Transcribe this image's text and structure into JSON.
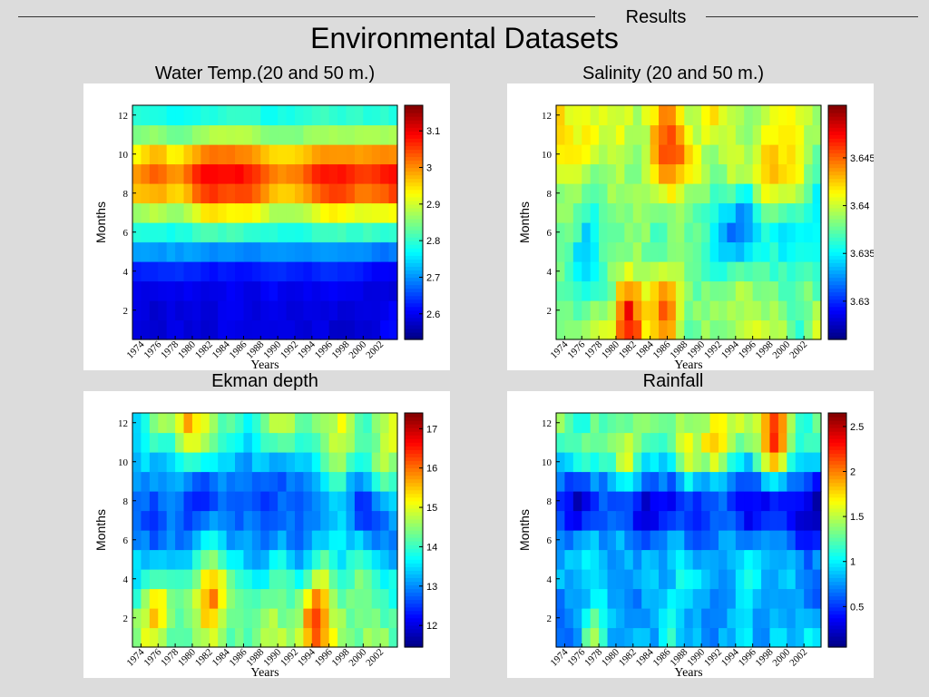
{
  "header": {
    "section_label": "Results",
    "title": "Environmental Datasets"
  },
  "chart_data": [
    {
      "type": "heatmap",
      "title": "Water Temp.(20 and 50 m.)",
      "xlabel": "Years",
      "ylabel": "Months",
      "xlim": [
        1973,
        2004
      ],
      "ylim": [
        1,
        12
      ],
      "xticks": [
        "1974",
        "1976",
        "1978",
        "1980",
        "1982",
        "1984",
        "1986",
        "1988",
        "1990",
        "1992",
        "1994",
        "1996",
        "1998",
        "2000",
        "2002"
      ],
      "yticks": [
        "2",
        "4",
        "6",
        "8",
        "10",
        "12"
      ],
      "colorbar": {
        "min": 2.53,
        "max": 3.17,
        "ticks": [
          "2.6",
          "2.7",
          "2.8",
          "2.9",
          "3",
          "3.1"
        ],
        "tick_values": [
          2.6,
          2.7,
          2.8,
          2.9,
          3.0,
          3.1
        ]
      },
      "colormap": "jet",
      "field": {
        "base": [
          0.1,
          0.1,
          0.11,
          0.13,
          0.24,
          0.45,
          0.56,
          0.8,
          0.87,
          0.72,
          0.52,
          0.34
        ],
        "year_amp": 0.14,
        "year_pattern": [
          0.0,
          0.3,
          -0.2,
          0.4,
          0.9,
          1.0,
          0.8,
          0.3,
          -0.1,
          0.0,
          0.5,
          0.9,
          0.8,
          0.3,
          0.6,
          0.8
        ],
        "year_months": [
          7,
          8,
          9,
          10
        ],
        "noise": 0.06,
        "seed": 11
      }
    },
    {
      "type": "heatmap",
      "title": "Salinity (20 and 50 m.)",
      "xlabel": "Years",
      "ylabel": "Months",
      "xlim": [
        1973,
        2004
      ],
      "ylim": [
        1,
        12
      ],
      "xticks": [
        "1974",
        "1976",
        "1978",
        "1980",
        "1982",
        "1984",
        "1986",
        "1988",
        "1990",
        "1992",
        "1994",
        "1996",
        "1998",
        "2000",
        "2002"
      ],
      "yticks": [
        "2",
        "4",
        "6",
        "8",
        "10",
        "12"
      ],
      "colorbar": {
        "min": 3.626,
        "max": 3.6505,
        "ticks": [
          "3.63",
          "3.635",
          "3.64",
          "3.645"
        ],
        "tick_values": [
          3.63,
          3.635,
          3.64,
          3.645
        ]
      },
      "colormap": "jet",
      "field": {
        "base": [
          0.55,
          0.55,
          0.52,
          0.48,
          0.45,
          0.45,
          0.5,
          0.52,
          0.55,
          0.58,
          0.6,
          0.58
        ],
        "year_amp": 0.0,
        "year_pattern": [],
        "year_months": [],
        "noise": 0.2,
        "seed": 23,
        "hotspots": [
          [
            1981,
            2,
            0.45,
            1.4
          ],
          [
            1985,
            2,
            0.35,
            1.2
          ],
          [
            1986,
            9.5,
            0.35,
            1.6
          ],
          [
            1998,
            9,
            0.3,
            1.3
          ],
          [
            1976,
            4,
            -0.3,
            1.4
          ],
          [
            1994,
            6,
            -0.25,
            1.8
          ],
          [
            2002,
            6,
            -0.3,
            1.5
          ]
        ]
      }
    },
    {
      "type": "heatmap",
      "title": "Ekman depth",
      "xlabel": "Years",
      "ylabel": "Months",
      "xlim": [
        1973,
        2004
      ],
      "ylim": [
        1,
        12
      ],
      "xticks": [
        "1974",
        "1976",
        "1978",
        "1980",
        "1982",
        "1984",
        "1986",
        "1988",
        "1990",
        "1992",
        "1994",
        "1996",
        "1998",
        "2000",
        "2002"
      ],
      "yticks": [
        "2",
        "4",
        "6",
        "8",
        "10",
        "12"
      ],
      "colorbar": {
        "min": 11.45,
        "max": 17.4,
        "ticks": [
          "12",
          "13",
          "14",
          "15",
          "16",
          "17"
        ],
        "tick_values": [
          12,
          13,
          14,
          15,
          16,
          17
        ]
      },
      "colormap": "jet",
      "field": {
        "base": [
          0.52,
          0.5,
          0.47,
          0.42,
          0.36,
          0.28,
          0.22,
          0.2,
          0.24,
          0.32,
          0.42,
          0.5
        ],
        "year_amp": 0.0,
        "year_pattern": [],
        "year_months": [],
        "noise": 0.18,
        "seed": 37,
        "hotspots": [
          [
            1994,
            2,
            0.5,
            1.3
          ],
          [
            1982,
            3,
            0.45,
            1.0
          ],
          [
            1975,
            2.5,
            0.4,
            1.1
          ],
          [
            1996,
            10,
            0.3,
            1.5
          ],
          [
            2002,
            10,
            0.3,
            1.2
          ],
          [
            1979,
            11.5,
            0.35,
            1.2
          ]
        ]
      }
    },
    {
      "type": "heatmap",
      "title": "Rainfall",
      "xlabel": "Years",
      "ylabel": "Months",
      "xlim": [
        1973,
        2004
      ],
      "ylim": [
        1,
        12
      ],
      "xticks": [
        "1974",
        "1976",
        "1978",
        "1980",
        "1982",
        "1984",
        "1986",
        "1988",
        "1990",
        "1992",
        "1994",
        "1996",
        "1998",
        "2000",
        "2002"
      ],
      "yticks": [
        "2",
        "4",
        "6",
        "8",
        "10",
        "12"
      ],
      "colorbar": {
        "min": 0.05,
        "max": 2.65,
        "ticks": [
          "0.5",
          "1",
          "1.5",
          "2",
          "2.5"
        ],
        "tick_values": [
          0.5,
          1,
          1.5,
          2,
          2.5
        ]
      },
      "colormap": "jet",
      "field": {
        "base": [
          0.35,
          0.3,
          0.28,
          0.32,
          0.32,
          0.25,
          0.12,
          0.1,
          0.18,
          0.4,
          0.52,
          0.45
        ],
        "year_amp": 0.0,
        "year_pattern": [],
        "year_months": [],
        "noise": 0.2,
        "seed": 53,
        "hotspots": [
          [
            1998,
            11,
            0.5,
            1.3
          ],
          [
            1991,
            10,
            0.4,
            1.2
          ],
          [
            1977,
            1.5,
            0.4,
            1.0
          ],
          [
            1986,
            1.5,
            0.35,
            1.0
          ],
          [
            1988,
            10,
            0.35,
            1.0
          ],
          [
            1981,
            10,
            0.35,
            1.0
          ]
        ]
      }
    }
  ]
}
